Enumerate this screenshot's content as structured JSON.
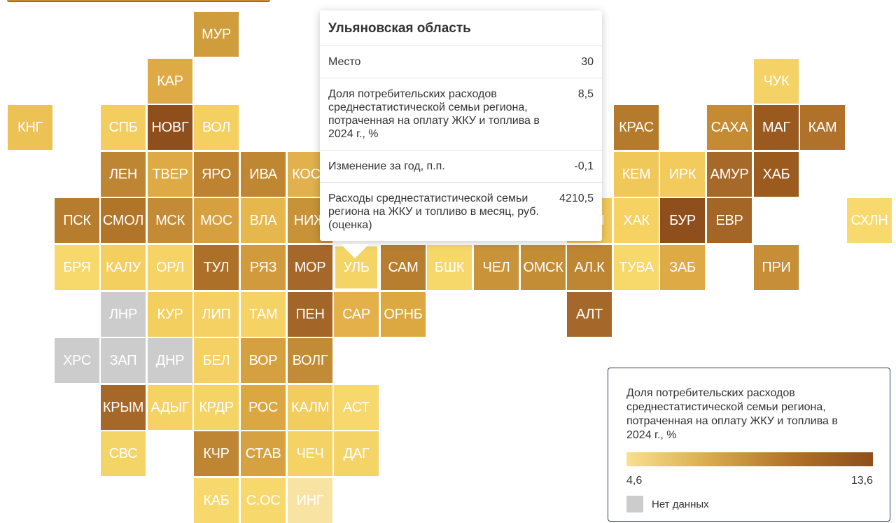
{
  "colors": {
    "nodata": "#cccccc",
    "scale": [
      "#f8e08e",
      "#d9ab4e",
      "#b27228",
      "#8e4f1c"
    ]
  },
  "tooltip": {
    "title": "Ульяновская область",
    "rows": [
      {
        "label": "Место",
        "value": "30"
      },
      {
        "label": "Доля потребительских расходов среднестатистической семьи региона, потраченная на оплату ЖКУ и топлива в 2024 г., %",
        "value": "8,5"
      },
      {
        "label": "Изменение за год, п.п.",
        "value": "-0,1"
      },
      {
        "label": "Расходы среднестатистической семьи региона на ЖКУ и топливо в месяц, руб. (оценка)",
        "value": "4210,5"
      }
    ]
  },
  "legend": {
    "title": "Доля потребительских расходов среднестатистической семьи региона, потраченная на оплату ЖКУ и топлива в 2024 г., %",
    "min": "4,6",
    "max": "13,6",
    "nodata_label": "Нет данных"
  },
  "regions": [
    {
      "label": "МУР",
      "col": 4,
      "row": 0,
      "color": "#cf9d3c"
    },
    {
      "label": "КАР",
      "col": 3,
      "row": 1,
      "color": "#deaa45"
    },
    {
      "label": "ЧУК",
      "col": 16,
      "row": 1,
      "color": "#f5d266"
    },
    {
      "label": "КНГ",
      "col": 0,
      "row": 2,
      "color": "#ecc254"
    },
    {
      "label": "СПБ",
      "col": 2,
      "row": 2,
      "color": "#f3ce5e"
    },
    {
      "label": "НОВГ",
      "col": 3,
      "row": 2,
      "color": "#8f4f1c"
    },
    {
      "label": "ВОЛ",
      "col": 4,
      "row": 2,
      "color": "#f4d060"
    },
    {
      "label": "КРАС",
      "col": 13,
      "row": 2,
      "color": "#b37b2b"
    },
    {
      "label": "САХА",
      "col": 15,
      "row": 2,
      "color": "#c48b34"
    },
    {
      "label": "МАГ",
      "col": 16,
      "row": 2,
      "color": "#9a5a1f"
    },
    {
      "label": "КАМ",
      "col": 17,
      "row": 2,
      "color": "#b0712a"
    },
    {
      "label": "ЛЕН",
      "col": 2,
      "row": 3,
      "color": "#be8633"
    },
    {
      "label": "ТВЕР",
      "col": 3,
      "row": 3,
      "color": "#deaa45"
    },
    {
      "label": "ЯРО",
      "col": 4,
      "row": 3,
      "color": "#bd8330"
    },
    {
      "label": "ИВА",
      "col": 5,
      "row": 3,
      "color": "#bf8732"
    },
    {
      "label": "КОСТ",
      "col": 6,
      "row": 3,
      "color": "#e2b04c"
    },
    {
      "label": "КЕМ",
      "col": 13,
      "row": 3,
      "color": "#f0c85a"
    },
    {
      "label": "ИРК",
      "col": 14,
      "row": 3,
      "color": "#f2cb5c"
    },
    {
      "label": "АМУР",
      "col": 15,
      "row": 3,
      "color": "#a7692a"
    },
    {
      "label": "ХАБ",
      "col": 16,
      "row": 3,
      "color": "#9b5b1f"
    },
    {
      "label": "ПСК",
      "col": 1,
      "row": 4,
      "color": "#b57d2d"
    },
    {
      "label": "СМОЛ",
      "col": 2,
      "row": 4,
      "color": "#b07529"
    },
    {
      "label": "МСК",
      "col": 3,
      "row": 4,
      "color": "#c38b35"
    },
    {
      "label": "МОС",
      "col": 4,
      "row": 4,
      "color": "#d6a040"
    },
    {
      "label": "ВЛА",
      "col": 5,
      "row": 4,
      "color": "#e6b74d"
    },
    {
      "label": "НИЖ",
      "col": 6,
      "row": 4,
      "color": "#c89338"
    },
    {
      "label": "ТОМ",
      "col": 12,
      "row": 4,
      "color": "#f1c95b"
    },
    {
      "label": "ХАК",
      "col": 13,
      "row": 4,
      "color": "#f5d262"
    },
    {
      "label": "БУР",
      "col": 14,
      "row": 4,
      "color": "#8e4f1c"
    },
    {
      "label": "ЕВР",
      "col": 15,
      "row": 4,
      "color": "#a46627"
    },
    {
      "label": "СХЛН",
      "col": 18,
      "row": 4,
      "color": "#f7d96e"
    },
    {
      "label": "БРЯ",
      "col": 1,
      "row": 5,
      "color": "#f6d86b"
    },
    {
      "label": "КАЛУ",
      "col": 2,
      "row": 5,
      "color": "#f3cf60"
    },
    {
      "label": "ОРЛ",
      "col": 3,
      "row": 5,
      "color": "#f5d465"
    },
    {
      "label": "ТУЛ",
      "col": 4,
      "row": 5,
      "color": "#ad7029"
    },
    {
      "label": "РЯЗ",
      "col": 5,
      "row": 5,
      "color": "#d19a3d"
    },
    {
      "label": "МОР",
      "col": 6,
      "row": 5,
      "color": "#a5672a"
    },
    {
      "label": "УЛЬ",
      "col": 7,
      "row": 5,
      "color": "#f4d465",
      "active": true
    },
    {
      "label": "САМ",
      "col": 8,
      "row": 5,
      "color": "#b67e2e"
    },
    {
      "label": "БШК",
      "col": 9,
      "row": 5,
      "color": "#f6d769"
    },
    {
      "label": "ЧЕЛ",
      "col": 10,
      "row": 5,
      "color": "#c99339"
    },
    {
      "label": "ОМСК",
      "col": 11,
      "row": 5,
      "color": "#c38d36"
    },
    {
      "label": "АЛ.К",
      "col": 12,
      "row": 5,
      "color": "#be8633"
    },
    {
      "label": "ТУВА",
      "col": 13,
      "row": 5,
      "color": "#f6d86b"
    },
    {
      "label": "ЗАБ",
      "col": 14,
      "row": 5,
      "color": "#deaa45"
    },
    {
      "label": "ПРИ",
      "col": 16,
      "row": 5,
      "color": "#c58e37"
    },
    {
      "label": "ЛНР",
      "col": 2,
      "row": 6,
      "color": "#cccccc"
    },
    {
      "label": "КУР",
      "col": 3,
      "row": 6,
      "color": "#f3cf60"
    },
    {
      "label": "ЛИП",
      "col": 4,
      "row": 6,
      "color": "#f4d162"
    },
    {
      "label": "ТАМ",
      "col": 5,
      "row": 6,
      "color": "#f4d264"
    },
    {
      "label": "ПЕН",
      "col": 6,
      "row": 6,
      "color": "#a46628"
    },
    {
      "label": "САР",
      "col": 7,
      "row": 6,
      "color": "#e3b04a"
    },
    {
      "label": "ОРНБ",
      "col": 8,
      "row": 6,
      "color": "#dba842"
    },
    {
      "label": "АЛТ",
      "col": 12,
      "row": 6,
      "color": "#a5672a"
    },
    {
      "label": "ХРС",
      "col": 1,
      "row": 7,
      "color": "#cccccc"
    },
    {
      "label": "ЗАП",
      "col": 2,
      "row": 7,
      "color": "#cccccc"
    },
    {
      "label": "ДНР",
      "col": 3,
      "row": 7,
      "color": "#cccccc"
    },
    {
      "label": "БЕЛ",
      "col": 4,
      "row": 7,
      "color": "#f4d162"
    },
    {
      "label": "ВОР",
      "col": 5,
      "row": 7,
      "color": "#d5a03f"
    },
    {
      "label": "ВОЛГ",
      "col": 6,
      "row": 7,
      "color": "#c28b35"
    },
    {
      "label": "КРЫМ",
      "col": 2,
      "row": 8,
      "color": "#a66828"
    },
    {
      "label": "АДЫГ",
      "col": 3,
      "row": 8,
      "color": "#f4d264"
    },
    {
      "label": "КРДР",
      "col": 4,
      "row": 8,
      "color": "#f5d466"
    },
    {
      "label": "РОС",
      "col": 5,
      "row": 8,
      "color": "#dba742"
    },
    {
      "label": "КАЛМ",
      "col": 6,
      "row": 8,
      "color": "#f2cd5e"
    },
    {
      "label": "АСТ",
      "col": 7,
      "row": 8,
      "color": "#f6d86c"
    },
    {
      "label": "СВС",
      "col": 2,
      "row": 9,
      "color": "#f5d467"
    },
    {
      "label": "КЧР",
      "col": 4,
      "row": 9,
      "color": "#be8633"
    },
    {
      "label": "СТАВ",
      "col": 5,
      "row": 9,
      "color": "#d6a140"
    },
    {
      "label": "ЧЕЧ",
      "col": 6,
      "row": 9,
      "color": "#f4d264"
    },
    {
      "label": "ДАГ",
      "col": 7,
      "row": 9,
      "color": "#f5d467"
    },
    {
      "label": "КАБ",
      "col": 4,
      "row": 10,
      "color": "#f6d86c"
    },
    {
      "label": "С.ОС",
      "col": 5,
      "row": 10,
      "color": "#f6d86c"
    },
    {
      "label": "ИНГ",
      "col": 6,
      "row": 10,
      "color": "#f8e3a2"
    }
  ]
}
